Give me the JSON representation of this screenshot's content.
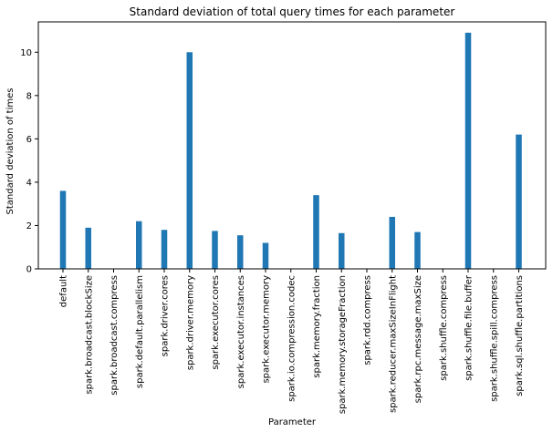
{
  "chart_data": {
    "type": "bar",
    "title": "Standard deviation of total query times for each parameter",
    "xlabel": "Parameter",
    "ylabel": "Standard deviation of times",
    "ylim": [
      0,
      11.4
    ],
    "yticks": [
      0,
      2,
      4,
      6,
      8,
      10
    ],
    "grid": false,
    "bar_color": "#1f77b4",
    "categories": [
      "default",
      "spark.broadcast.blockSize",
      "spark.broadcast.compress",
      "spark.default.parallelism",
      "spark.driver.cores",
      "spark.driver.memory",
      "spark.executor.cores",
      "spark.executor.instances",
      "spark.executor.memory",
      "spark.io.compression.codec",
      "spark.memory.fraction",
      "spark.memory.storageFraction",
      "spark.rdd.compress",
      "spark.reducer.maxSizeInFlight",
      "spark.rpc.message.maxSize",
      "spark.shuffle.compress",
      "spark.shuffle.file.buffer",
      "spark.shuffle.spill.compress",
      "spark.sql.shuffle.partitions"
    ],
    "values": [
      3.6,
      1.9,
      0,
      2.2,
      1.8,
      10.0,
      1.75,
      1.55,
      1.2,
      0,
      3.4,
      1.65,
      0,
      2.4,
      1.7,
      0,
      10.9,
      0,
      6.2
    ]
  }
}
